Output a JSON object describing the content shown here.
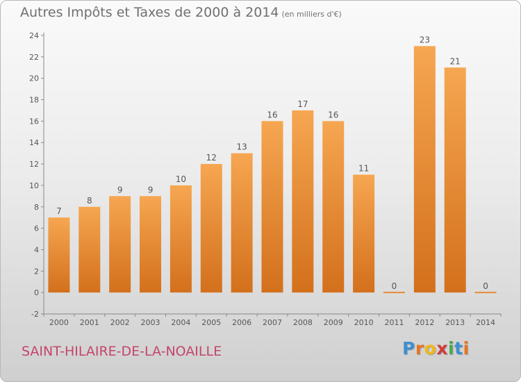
{
  "header": {
    "title": "Autres Impôts et Taxes de 2000 à 2014",
    "unit": "(en milliers d'€)"
  },
  "footer": {
    "commune": "SAINT-HILAIRE-DE-LA-NOAILLE",
    "logo_letters": [
      "P",
      "r",
      "o",
      "x",
      "i",
      "t",
      "i"
    ],
    "logo_colors": [
      "#3d8fd1",
      "#e8741e",
      "#f2b818",
      "#d33a3a",
      "#4aa84a",
      "#3d8fd1",
      "#e8741e"
    ]
  },
  "chart_data": {
    "type": "bar",
    "title": "Autres Impôts et Taxes de 2000 à 2014",
    "unit_label": "(en milliers d'€)",
    "xlabel": "",
    "ylabel": "",
    "categories": [
      "2000",
      "2001",
      "2002",
      "2003",
      "2004",
      "2005",
      "2006",
      "2007",
      "2008",
      "2009",
      "2010",
      "2011",
      "2012",
      "2013",
      "2014"
    ],
    "values": [
      7,
      8,
      9,
      9,
      10,
      12,
      13,
      16,
      17,
      16,
      11,
      0,
      23,
      21,
      0
    ],
    "ylim": [
      -2,
      24
    ],
    "yticks": [
      -2,
      0,
      2,
      4,
      6,
      8,
      10,
      12,
      14,
      16,
      18,
      20,
      22,
      24
    ],
    "grid": false,
    "legend": "none",
    "colors": {
      "bar_top": "#f6a651",
      "bar_bottom": "#d3701c",
      "zero_bar": "#e88a35",
      "axis": "#888888",
      "label": "#555555"
    }
  }
}
